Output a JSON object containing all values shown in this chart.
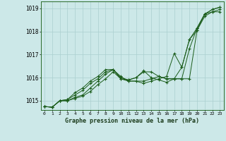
{
  "title": "Graphe pression niveau de la mer (hPa)",
  "xlabel_hours": [
    0,
    1,
    2,
    3,
    4,
    5,
    6,
    7,
    8,
    9,
    10,
    11,
    12,
    13,
    14,
    15,
    16,
    17,
    18,
    19,
    20,
    21,
    22,
    23
  ],
  "ylim": [
    1014.6,
    1019.3
  ],
  "yticks": [
    1015,
    1016,
    1017,
    1018,
    1019
  ],
  "background_color": "#cce8e8",
  "grid_color": "#aacfcf",
  "line_color": "#1a5c1a",
  "series": [
    [
      1014.75,
      1014.72,
      1015.0,
      1015.0,
      1015.1,
      1015.2,
      1015.4,
      1015.7,
      1015.95,
      1016.25,
      1015.95,
      1015.85,
      1015.85,
      1015.85,
      1015.95,
      1016.05,
      1015.95,
      1015.95,
      1015.95,
      1015.95,
      1018.05,
      1018.75,
      1018.85,
      1018.85
    ],
    [
      1014.75,
      1014.72,
      1015.0,
      1015.0,
      1015.15,
      1015.25,
      1015.55,
      1015.85,
      1016.15,
      1016.35,
      1016.05,
      1015.85,
      1015.85,
      1015.75,
      1015.85,
      1015.95,
      1016.05,
      1017.05,
      1016.45,
      1017.65,
      1018.05,
      1018.65,
      1018.85,
      1018.95
    ],
    [
      1014.75,
      1014.72,
      1015.0,
      1015.05,
      1015.25,
      1015.45,
      1015.75,
      1015.95,
      1016.25,
      1016.35,
      1016.0,
      1015.9,
      1016.0,
      1016.25,
      1016.25,
      1016.05,
      1015.95,
      1015.95,
      1015.95,
      1017.25,
      1018.15,
      1018.75,
      1018.95,
      1019.05
    ],
    [
      1014.75,
      1014.72,
      1015.0,
      1015.05,
      1015.35,
      1015.55,
      1015.85,
      1016.05,
      1016.35,
      1016.35,
      1015.95,
      1015.9,
      1016.0,
      1016.3,
      1016.0,
      1015.9,
      1015.8,
      1015.95,
      1016.45,
      1017.65,
      1018.15,
      1018.75,
      1018.95,
      1019.05
    ]
  ]
}
